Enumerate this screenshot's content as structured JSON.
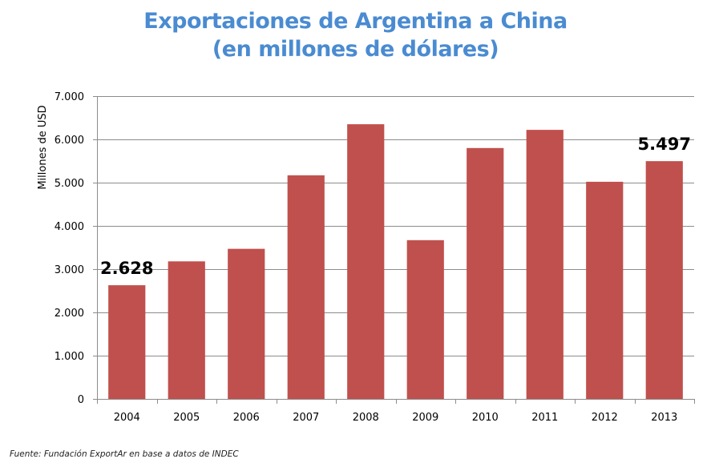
{
  "chart_data": {
    "type": "bar",
    "title_line1": "Exportaciones de Argentina a China",
    "title_line2": "(en millones de dólares)",
    "ylabel": "Millones de USD",
    "xlabel": "",
    "categories": [
      "2004",
      "2005",
      "2006",
      "2007",
      "2008",
      "2009",
      "2010",
      "2011",
      "2012",
      "2013"
    ],
    "values": [
      2628,
      3180,
      3470,
      5170,
      6350,
      3670,
      5800,
      6220,
      5020,
      5497
    ],
    "ylim": [
      0,
      7000
    ],
    "yticks": [
      0,
      1000,
      2000,
      3000,
      4000,
      5000,
      6000,
      7000
    ],
    "ytick_labels": [
      "0",
      "1.000",
      "2.000",
      "3.000",
      "4.000",
      "5.000",
      "6.000",
      "7.000"
    ],
    "data_labels": [
      {
        "index": 0,
        "text": "2.628"
      },
      {
        "index": 9,
        "text": "5.497"
      }
    ],
    "bar_color": "#c0504d",
    "grid": true
  },
  "source": "Fuente: Fundación ExportAr en base a datos de INDEC"
}
